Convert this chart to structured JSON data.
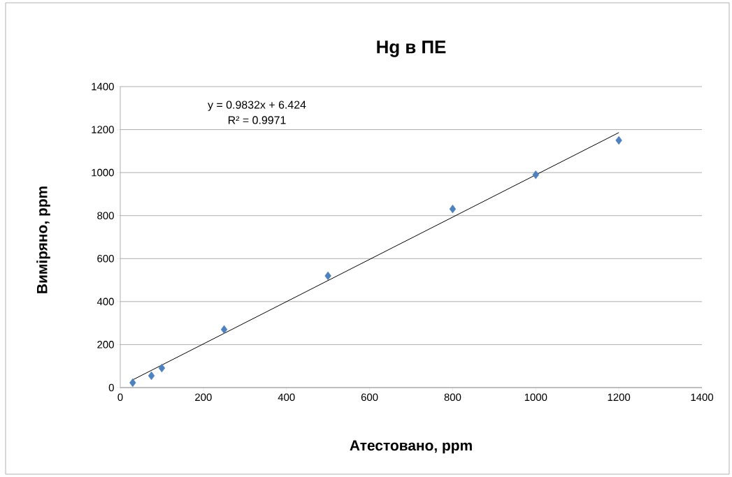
{
  "chart_data": {
    "type": "scatter",
    "title": "Hg в ПЕ",
    "xlabel": "Атестовано, ppm",
    "ylabel": "Виміряно, ppm",
    "x": [
      30,
      75,
      100,
      250,
      500,
      800,
      1000,
      1200
    ],
    "series": [
      {
        "type": "scatter",
        "color": "#4f81bd",
        "values": [
          23,
          55,
          91,
          270,
          520,
          831,
          990,
          1150
        ]
      },
      {
        "type": "line",
        "color": "#000000",
        "marker": "none",
        "x": [
          30,
          1200
        ],
        "values": [
          36,
          1186
        ]
      }
    ],
    "marker": "diamond",
    "grid": "y",
    "xlim": [
      0,
      1400
    ],
    "xticks": [
      0,
      200,
      400,
      600,
      800,
      1000,
      1200,
      1400
    ],
    "ylim": [
      0,
      1400
    ],
    "yticks": [
      0,
      200,
      400,
      600,
      800,
      1000,
      1200,
      1400
    ],
    "annotations": [
      "y = 0.9832x + 6.424",
      "R² = 0.9971"
    ]
  }
}
